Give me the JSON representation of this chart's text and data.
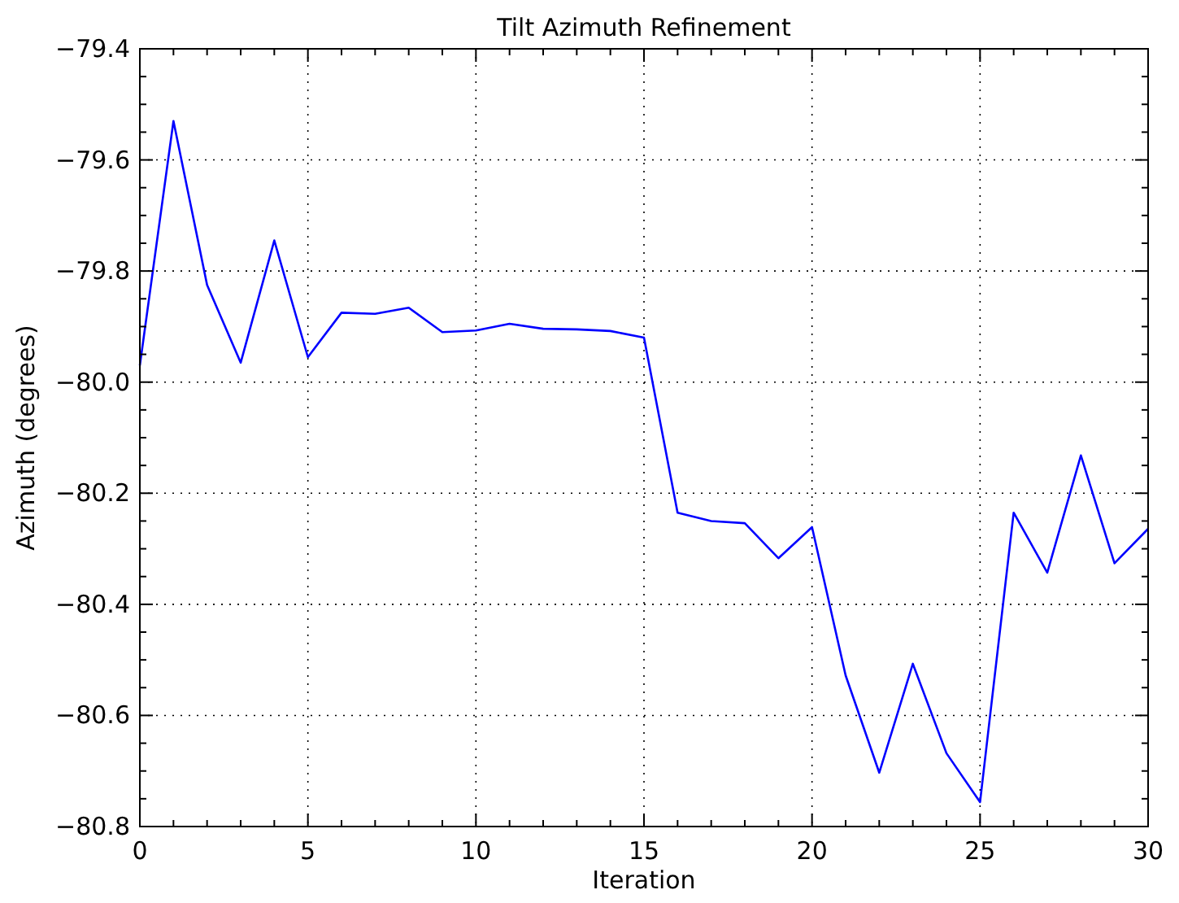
{
  "chart_data": {
    "type": "line",
    "title": "Tilt Azimuth Refinement",
    "xlabel": "Iteration",
    "ylabel": "Azimuth (degrees)",
    "x": [
      0,
      1,
      2,
      3,
      4,
      5,
      6,
      7,
      8,
      9,
      10,
      11,
      12,
      13,
      14,
      15,
      16,
      17,
      18,
      19,
      20,
      21,
      22,
      23,
      24,
      25,
      26,
      27,
      28,
      29,
      30
    ],
    "series": [
      {
        "color": "#0000ff",
        "values": [
          -79.97,
          -79.53,
          -79.825,
          -79.965,
          -79.745,
          -79.955,
          -79.875,
          -79.877,
          -79.866,
          -79.91,
          -79.907,
          -79.895,
          -79.904,
          -79.905,
          -79.908,
          -79.92,
          -80.235,
          -80.25,
          -80.254,
          -80.317,
          -80.261,
          -80.528,
          -80.703,
          -80.507,
          -80.668,
          -80.756,
          -80.235,
          -80.343,
          -80.132,
          -80.326,
          -80.264
        ]
      }
    ],
    "xlim": [
      0,
      30
    ],
    "ylim": [
      -80.8,
      -79.4
    ],
    "xticks": [
      0,
      {
        "value": 1,
        "label": null
      },
      {
        "value": 2,
        "label": null
      },
      {
        "value": 3,
        "label": null
      },
      {
        "value": 4,
        "label": null
      },
      5,
      {
        "value": 6,
        "label": null
      },
      {
        "value": 7,
        "label": null
      },
      {
        "value": 8,
        "label": null
      },
      {
        "value": 9,
        "label": null
      },
      10,
      {
        "value": 11,
        "label": null
      },
      {
        "value": 12,
        "label": null
      },
      {
        "value": 13,
        "label": null
      },
      {
        "value": 14,
        "label": null
      },
      15,
      {
        "value": 16,
        "label": null
      },
      {
        "value": 17,
        "label": null
      },
      {
        "value": 18,
        "label": null
      },
      {
        "value": 19,
        "label": null
      },
      20,
      {
        "value": 21,
        "label": null
      },
      {
        "value": 22,
        "label": null
      },
      {
        "value": 23,
        "label": null
      },
      {
        "value": 24,
        "label": null
      },
      25,
      {
        "value": 26,
        "label": null
      },
      {
        "value": 27,
        "label": null
      },
      {
        "value": 28,
        "label": null
      },
      {
        "value": 29,
        "label": null
      },
      30
    ],
    "yticks": [
      {
        "value": -80.8,
        "label": "−80.8"
      },
      {
        "value": -80.75,
        "label": null
      },
      {
        "value": -80.7,
        "label": null
      },
      {
        "value": -80.65,
        "label": null
      },
      {
        "value": -80.6,
        "label": "−80.6"
      },
      {
        "value": -80.55,
        "label": null
      },
      {
        "value": -80.5,
        "label": null
      },
      {
        "value": -80.45,
        "label": null
      },
      {
        "value": -80.4,
        "label": "−80.4"
      },
      {
        "value": -80.35,
        "label": null
      },
      {
        "value": -80.3,
        "label": null
      },
      {
        "value": -80.25,
        "label": null
      },
      {
        "value": -80.2,
        "label": "−80.2"
      },
      {
        "value": -80.15,
        "label": null
      },
      {
        "value": -80.1,
        "label": null
      },
      {
        "value": -80.05,
        "label": null
      },
      {
        "value": -80.0,
        "label": "−80.0"
      },
      {
        "value": -79.95,
        "label": null
      },
      {
        "value": -79.9,
        "label": null
      },
      {
        "value": -79.85,
        "label": null
      },
      {
        "value": -79.8,
        "label": "−79.8"
      },
      {
        "value": -79.75,
        "label": null
      },
      {
        "value": -79.7,
        "label": null
      },
      {
        "value": -79.65,
        "label": null
      },
      {
        "value": -79.6,
        "label": "−79.6"
      },
      {
        "value": -79.55,
        "label": null
      },
      {
        "value": -79.5,
        "label": null
      },
      {
        "value": -79.45,
        "label": null
      },
      {
        "value": -79.4,
        "label": "−79.4"
      }
    ],
    "grid": true,
    "marker": "none",
    "line_style": "solid"
  }
}
